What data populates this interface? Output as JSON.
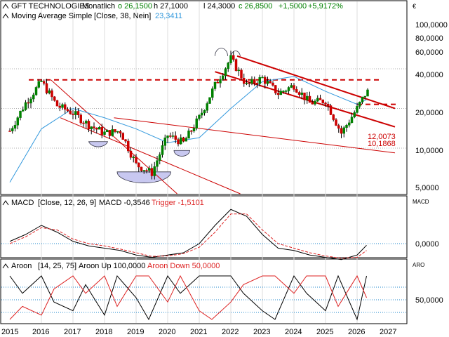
{
  "header": {
    "instrument": "GFT TECHNOLOGIES",
    "period": "Monatlich",
    "open": "o 26,1500",
    "high": "h 27,1000",
    "low": "l 24,3000",
    "close": "c 26,8500",
    "change_abs": "+1,5000",
    "change_pct": "+5,9172%",
    "ma_label": "Moving Average Simple",
    "ma_params": "[Close, 38, Nein]",
    "ma_value": "23,3411",
    "currency": "€"
  },
  "macd_panel": {
    "label": "MACD",
    "params": "[Close, 12, 26, 9]",
    "macd_value_label": "MACD -0,3546",
    "trigger_label": "Trigger -1,5101",
    "axis_unit": "MACD",
    "tick": "0,0000"
  },
  "aroon_panel": {
    "label": "Aroon",
    "params": "[14, 25, 75]",
    "up_label": "Aroon Up 100,0000",
    "down_label": "Aroon Down 50,0000",
    "axis_unit": "ARO",
    "tick": "50,0000"
  },
  "price_axis": {
    "ticks": [
      "100,0000",
      "80,0000",
      "60,0000",
      "40,0000",
      "20,0000",
      "10,0000",
      "5,0000"
    ]
  },
  "annotations": {
    "value_1": "12,0073",
    "value_2": "10,1868"
  },
  "x_axis": {
    "ticks": [
      "2015",
      "2016",
      "2017",
      "2018",
      "2019",
      "2020",
      "2021",
      "2022",
      "2023",
      "2024",
      "2025",
      "2026",
      "2027"
    ]
  },
  "colors": {
    "up_candle": "#008000",
    "down_candle": "#cc0000",
    "moving_average": "#3399dd",
    "trendline": "#cc0000",
    "macd_line": "#000000",
    "trigger_line": "#dd2222",
    "aroon_up": "#000000",
    "aroon_down": "#dd2222",
    "grid": "#b0b0b0",
    "pattern_fill": "#c8c8f0"
  },
  "chart_data": [
    {
      "type": "candlestick",
      "title": "GFT TECHNOLOGIES",
      "period": "Monatlich",
      "y_scale": "log",
      "ylim": [
        4.5,
        130
      ],
      "x_range": [
        "2015",
        "2027"
      ],
      "series": [
        {
          "name": "Price",
          "x": [
            "2015",
            "2015.5",
            "2016",
            "2016.5",
            "2017",
            "2017.5",
            "2018",
            "2018.5",
            "2019",
            "2019.5",
            "2020",
            "2020.5",
            "2021",
            "2021.5",
            "2022",
            "2022.5",
            "2023",
            "2023.5",
            "2024",
            "2024.5",
            "2025",
            "2025.5",
            "2026",
            "2026.3"
          ],
          "y": [
            13.5,
            22,
            32,
            21,
            18.5,
            15,
            13,
            13.5,
            7.5,
            6.5,
            12.5,
            11,
            17,
            30,
            48,
            30,
            34,
            26,
            30,
            22,
            23,
            13,
            20,
            26.85
          ]
        },
        {
          "name": "Moving Average Simple",
          "x": [
            "2015",
            "2016",
            "2017",
            "2018",
            "2019",
            "2020",
            "2021",
            "2022",
            "2023",
            "2024",
            "2025",
            "2026",
            "2026.3"
          ],
          "y": [
            5.5,
            14,
            20,
            17,
            14,
            11,
            12,
            20,
            32,
            35,
            27,
            21.5,
            23.34
          ]
        }
      ],
      "lines": [
        {
          "kind": "horizontal",
          "style": "dashed",
          "value": 33,
          "x_range": [
            "2015.6",
            "2026.7"
          ]
        },
        {
          "kind": "horizontal",
          "style": "dashed",
          "value": 21.5,
          "x_range": [
            "2026",
            "2027.3"
          ]
        },
        {
          "kind": "trend",
          "from": [
            "2016.3",
            33
          ],
          "to": [
            "2020.3",
            4.5
          ]
        },
        {
          "kind": "trend",
          "from": [
            "2016.6",
            17
          ],
          "to": [
            "2022.3",
            4.5
          ]
        },
        {
          "kind": "trend",
          "from": [
            "2018.3",
            17
          ],
          "to": [
            "2027.2",
            9.2
          ]
        },
        {
          "kind": "trend",
          "from": [
            "2021.5",
            38
          ],
          "to": [
            "2027.2",
            14.5
          ]
        },
        {
          "kind": "trend",
          "from": [
            "2022.2",
            50
          ],
          "to": [
            "2027.2",
            20
          ]
        }
      ]
    },
    {
      "type": "line",
      "title": "MACD",
      "series": [
        {
          "name": "MACD",
          "x": [
            "2015",
            "2015.5",
            "2016",
            "2016.5",
            "2017",
            "2017.5",
            "2018",
            "2018.5",
            "2019",
            "2019.5",
            "2020",
            "2020.5",
            "2021",
            "2021.5",
            "2022",
            "2022.5",
            "2023",
            "2023.5",
            "2024",
            "2024.5",
            "2025",
            "2025.5",
            "2026",
            "2026.3"
          ],
          "y": [
            0.5,
            2,
            4,
            2.5,
            0.5,
            -0.5,
            -1,
            -1.5,
            -2.5,
            -3,
            -2.5,
            -2,
            0,
            4,
            7.5,
            6,
            2,
            -1,
            -1.5,
            -2.5,
            -3,
            -3.5,
            -2.5,
            -0.3546
          ]
        },
        {
          "name": "Trigger",
          "x": [
            "2015",
            "2015.5",
            "2016",
            "2016.5",
            "2017",
            "2017.5",
            "2018",
            "2018.5",
            "2019",
            "2019.5",
            "2020",
            "2020.5",
            "2021",
            "2021.5",
            "2022",
            "2022.5",
            "2023",
            "2023.5",
            "2024",
            "2024.5",
            "2025",
            "2025.5",
            "2026",
            "2026.3"
          ],
          "y": [
            0,
            1.5,
            3.5,
            3,
            1,
            0,
            -0.5,
            -1.2,
            -2,
            -2.8,
            -2.7,
            -2.2,
            -0.8,
            2.5,
            6.5,
            6.5,
            3,
            0,
            -1,
            -2,
            -2.7,
            -3.2,
            -3,
            -1.5101
          ]
        }
      ]
    },
    {
      "type": "line",
      "title": "Aroon",
      "ylim": [
        0,
        100
      ],
      "series": [
        {
          "name": "Aroon Up",
          "x": [
            "2015",
            "2015.4",
            "2016",
            "2016.4",
            "2017",
            "2017.4",
            "2018",
            "2018.4",
            "2019",
            "2019.4",
            "2020",
            "2020.4",
            "2021",
            "2021.4",
            "2022",
            "2022.4",
            "2023",
            "2023.4",
            "2024",
            "2024.4",
            "2025",
            "2025.4",
            "2026",
            "2026.3"
          ],
          "y": [
            100,
            60,
            100,
            40,
            20,
            80,
            10,
            100,
            50,
            0,
            100,
            60,
            100,
            100,
            100,
            60,
            20,
            0,
            100,
            60,
            20,
            100,
            0,
            100
          ]
        },
        {
          "name": "Aroon Down",
          "x": [
            "2015",
            "2015.4",
            "2016",
            "2016.4",
            "2017",
            "2017.4",
            "2018",
            "2018.4",
            "2019",
            "2019.4",
            "2020",
            "2020.4",
            "2021",
            "2021.4",
            "2022",
            "2022.4",
            "2023",
            "2023.4",
            "2024",
            "2024.4",
            "2025",
            "2025.4",
            "2026",
            "2026.3"
          ],
          "y": [
            0,
            30,
            10,
            70,
            100,
            60,
            100,
            30,
            100,
            100,
            40,
            100,
            20,
            0,
            40,
            80,
            100,
            100,
            60,
            100,
            100,
            30,
            100,
            50
          ]
        }
      ]
    }
  ]
}
